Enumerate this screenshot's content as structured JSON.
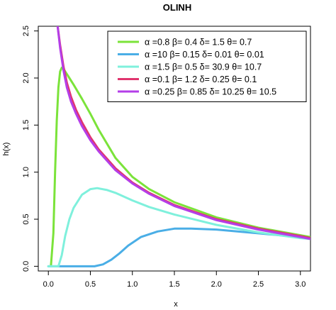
{
  "chart_data": {
    "type": "line",
    "title": "OLINH",
    "xlabel": "x",
    "ylabel": "h(x)",
    "xlim": [
      -0.12,
      3.12
    ],
    "ylim": [
      -0.05,
      2.55
    ],
    "x_ticks": [
      "0.0",
      "0.5",
      "1.0",
      "1.5",
      "2.0",
      "2.5",
      "3.0"
    ],
    "y_ticks": [
      "0.0",
      "0.5",
      "1.0",
      "1.5",
      "2.0",
      "2.5"
    ],
    "grid": false,
    "legend_position": "top-right",
    "series": [
      {
        "name": "α =0.8  β= 0.4  δ= 1.5  θ= 0.7",
        "color": "#7be33a",
        "x": [
          0.03,
          0.06,
          0.08,
          0.1,
          0.12,
          0.14,
          0.16,
          0.18,
          0.2,
          0.25,
          0.3,
          0.4,
          0.5,
          0.6,
          0.8,
          1.0,
          1.2,
          1.5,
          2.0,
          2.5,
          3.0,
          3.12
        ],
        "y": [
          0.0,
          0.35,
          1.0,
          1.55,
          1.9,
          2.07,
          2.11,
          2.1,
          2.07,
          2.0,
          1.93,
          1.78,
          1.62,
          1.45,
          1.15,
          0.95,
          0.82,
          0.68,
          0.52,
          0.41,
          0.33,
          0.31
        ]
      },
      {
        "name": "α =10  β= 0.15  δ= 0.01  θ= 0.01",
        "color": "#4aaee6",
        "x": [
          0.0,
          0.55,
          0.65,
          0.75,
          0.85,
          0.95,
          1.1,
          1.3,
          1.5,
          1.7,
          2.0,
          2.5,
          3.0,
          3.12
        ],
        "y": [
          0.0,
          0.0,
          0.02,
          0.07,
          0.14,
          0.22,
          0.31,
          0.37,
          0.4,
          0.4,
          0.39,
          0.35,
          0.31,
          0.3
        ]
      },
      {
        "name": "α =1.5  β= 0.5  δ= 30.9  θ= 10.7",
        "color": "#7ff0dc",
        "x": [
          0.0,
          0.12,
          0.16,
          0.2,
          0.25,
          0.3,
          0.4,
          0.5,
          0.58,
          0.7,
          0.8,
          1.0,
          1.2,
          1.5,
          2.0,
          2.5,
          3.0,
          3.12
        ],
        "y": [
          0.0,
          0.0,
          0.12,
          0.32,
          0.5,
          0.62,
          0.76,
          0.82,
          0.83,
          0.81,
          0.78,
          0.7,
          0.63,
          0.55,
          0.44,
          0.36,
          0.3,
          0.29
        ]
      },
      {
        "name": "α =0.1  β= 1.2  δ= 0.25  θ= 0.1",
        "color": "#e0356e",
        "x": [
          0.11,
          0.14,
          0.18,
          0.22,
          0.27,
          0.33,
          0.4,
          0.5,
          0.6,
          0.8,
          1.0,
          1.2,
          1.5,
          2.0,
          2.5,
          3.0,
          3.12
        ],
        "y": [
          2.55,
          2.35,
          2.12,
          1.95,
          1.8,
          1.66,
          1.53,
          1.37,
          1.24,
          1.04,
          0.89,
          0.78,
          0.65,
          0.5,
          0.4,
          0.32,
          0.3
        ]
      },
      {
        "name": "α =0.25  β= 0.85  δ= 10.25  θ= 10.5",
        "color": "#b43ee8",
        "x": [
          0.11,
          0.14,
          0.18,
          0.22,
          0.27,
          0.33,
          0.4,
          0.5,
          0.6,
          0.8,
          1.0,
          1.2,
          1.5,
          2.0,
          2.5,
          3.0,
          3.12
        ],
        "y": [
          2.55,
          2.32,
          2.08,
          1.9,
          1.75,
          1.62,
          1.49,
          1.34,
          1.22,
          1.02,
          0.88,
          0.77,
          0.64,
          0.49,
          0.39,
          0.31,
          0.29
        ]
      }
    ]
  }
}
